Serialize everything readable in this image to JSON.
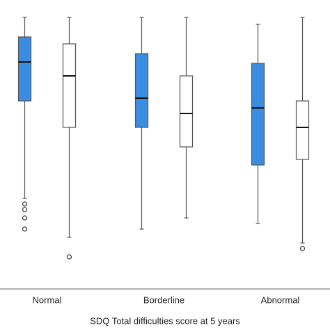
{
  "chart_data": {
    "type": "box",
    "x_label": "SDQ Total difficulties score at 5 years",
    "categories": [
      "Normal",
      "Borderline",
      "Abnormal"
    ],
    "ylim": [
      0,
      100
    ],
    "series": [
      {
        "color": "#3a8de0",
        "boxes": [
          {
            "min": 32.5,
            "q1": 67.5,
            "median": 81.5,
            "q3": 90.5,
            "max": 97.5,
            "outliers": [
              30.5,
              28.5,
              25.5,
              21.5
            ]
          },
          {
            "min": 21.5,
            "q1": 58,
            "median": 68.5,
            "q3": 84.5,
            "max": 97.5,
            "outliers": []
          },
          {
            "min": 23.5,
            "q1": 44.5,
            "median": 65,
            "q3": 81,
            "max": 95,
            "outliers": []
          }
        ]
      },
      {
        "color": "#ffffff",
        "boxes": [
          {
            "min": 18.5,
            "q1": 58,
            "median": 76.5,
            "q3": 88,
            "max": 97.5,
            "outliers": [
              11.5
            ]
          },
          {
            "min": 25.5,
            "q1": 51,
            "median": 63,
            "q3": 76.5,
            "max": 97.5,
            "outliers": []
          },
          {
            "min": 16.5,
            "q1": 46.5,
            "median": 58,
            "q3": 67.5,
            "max": 97.5,
            "outliers": [
              14.5
            ]
          }
        ]
      }
    ]
  }
}
